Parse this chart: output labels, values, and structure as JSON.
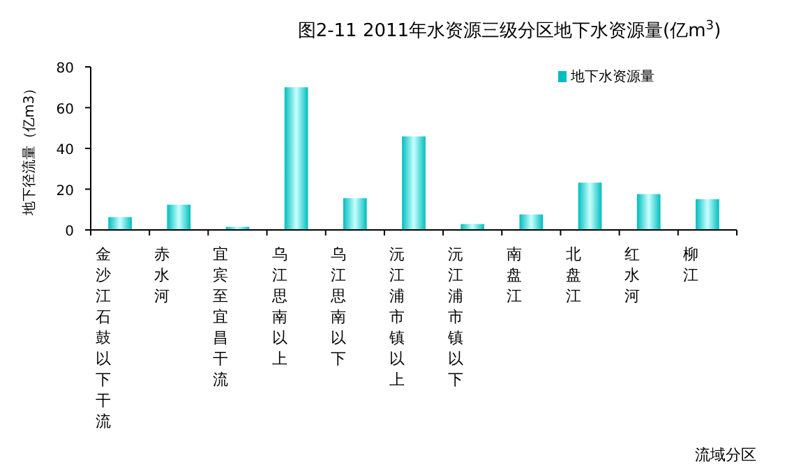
{
  "chart_data": {
    "type": "bar",
    "title": "图2-11     2011年水资源三级分区地下水资源量(亿m$^{3}$)",
    "ylabel": "地下径流量（亿m3）",
    "xlabel": "流域分区",
    "categories": [
      "金沙江石鼓以下干流",
      "赤水河",
      "宜宾至宜昌干流",
      "乌江思南以上",
      "乌江思南以下",
      "沅江浦市镇以上",
      "沅江浦市镇以下",
      "南盘江",
      "北盘江",
      "红水河",
      "柳江"
    ],
    "series": [
      {
        "name": "地下水资源量",
        "color": "#00bdbd",
        "values": [
          6.3,
          12.4,
          1.5,
          70,
          15.6,
          45.9,
          2.9,
          7.6,
          23.2,
          17.6,
          15.1
        ]
      }
    ],
    "ylim": [
      0,
      80
    ],
    "yticks": [
      0,
      20,
      40,
      60,
      80
    ],
    "grid": false,
    "legend": "top right"
  }
}
